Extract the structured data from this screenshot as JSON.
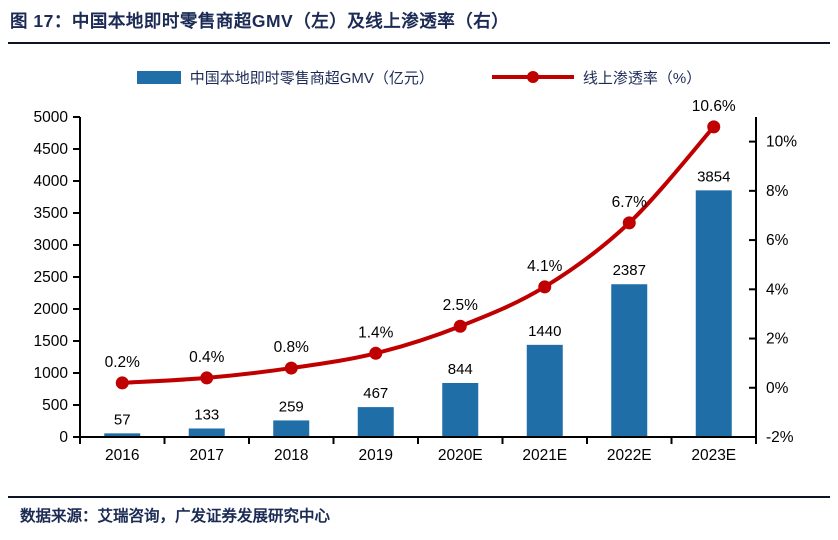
{
  "figure": {
    "title": "图 17：中国本地即时零售商超GMV（左）及线上渗透率（右）",
    "source": "数据来源：艾瑞咨询，广发证券发展研究中心"
  },
  "colors": {
    "bar": "#1F6EA8",
    "line": "#C00000",
    "navy": "#1C2B55",
    "axis": "#000000",
    "label_text": "#000000"
  },
  "chart_data": {
    "type": "bar",
    "subtype": "bar-and-line-combo",
    "categories": [
      "2016",
      "2017",
      "2018",
      "2019",
      "2020E",
      "2021E",
      "2022E",
      "2023E"
    ],
    "series": [
      {
        "name": "中国本地即时零售商超GMV（亿元）",
        "type": "bar",
        "axis": "left",
        "values": [
          57,
          133,
          259,
          467,
          844,
          1440,
          2387,
          3854
        ],
        "labels": [
          "57",
          "133",
          "259",
          "467",
          "844",
          "1440",
          "2387",
          "3854"
        ]
      },
      {
        "name": "线上渗透率（%）",
        "type": "line",
        "axis": "right",
        "values": [
          0.2,
          0.4,
          0.8,
          1.4,
          2.5,
          4.1,
          6.7,
          10.6
        ],
        "labels": [
          "0.2%",
          "0.4%",
          "0.8%",
          "1.4%",
          "2.5%",
          "4.1%",
          "6.7%",
          "10.6%"
        ]
      }
    ],
    "left_axis": {
      "min": 0,
      "max": 5000,
      "step": 500,
      "tick_labels": [
        "0",
        "500",
        "1000",
        "1500",
        "2000",
        "2500",
        "3000",
        "3500",
        "4000",
        "4500",
        "5000"
      ]
    },
    "right_axis": {
      "min": -2,
      "max": 11,
      "step": 2,
      "tick_labels": [
        "-2%",
        "0%",
        "2%",
        "4%",
        "6%",
        "8%",
        "10%"
      ],
      "tick_values": [
        -2,
        0,
        2,
        4,
        6,
        8,
        10
      ]
    },
    "grid": false,
    "legend_position": "top-center"
  }
}
